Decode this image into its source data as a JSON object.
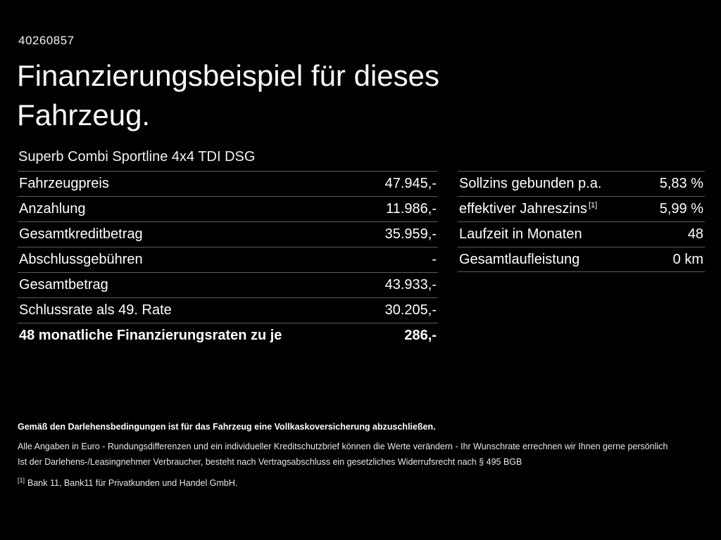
{
  "header": {
    "id": "40260857",
    "title_line1": "Finanzierungsbeispiel für dieses",
    "title_line2": "Fahrzeug.",
    "subtitle": "Superb Combi Sportline 4x4 TDI DSG"
  },
  "left_table": {
    "rows": [
      {
        "label": "Fahrzeugpreis",
        "value": "47.945,-"
      },
      {
        "label": "Anzahlung",
        "value": "11.986,-"
      },
      {
        "label": "Gesamtkreditbetrag",
        "value": "35.959,-"
      },
      {
        "label": "Abschlussgebühren",
        "value": "-"
      },
      {
        "label": "Gesamtbetrag",
        "value": "43.933,-"
      },
      {
        "label": "Schlussrate als 49. Rate",
        "value": "30.205,-"
      },
      {
        "label": "48 monatliche Finanzierungsraten zu je",
        "value": "286,-"
      }
    ]
  },
  "right_table": {
    "rows": [
      {
        "label": "Sollzins gebunden p.a.",
        "value": "5,83 %"
      },
      {
        "label": "effektiver Jahreszins",
        "sup": "[1]",
        "value": "5,99 %"
      },
      {
        "label": "Laufzeit in Monaten",
        "value": "48"
      },
      {
        "label": "Gesamtlaufleistung",
        "value": "0 km"
      }
    ]
  },
  "footer": {
    "line1": "Gemäß den Darlehensbedingungen ist für das Fahrzeug eine Vollkaskoversicherung abzuschließen.",
    "line2": "Alle Angaben in Euro - Rundungsdifferenzen und ein individueller Kreditschutzbrief können die Werte verändern - Ihr Wunschrate errechnen wir Ihnen gerne persönlich",
    "line3": "Ist der Darlehens-/Leasingnehmer Verbraucher, besteht nach Vertragsabschluss ein gesetzliches Widerrufsrecht nach § 495 BGB",
    "footnote_marker": "[1]",
    "footnote": "Bank 11, Bank11 für Privatkunden und Handel GmbH."
  },
  "colors": {
    "background": "#000000",
    "text": "#ffffff",
    "divider": "#5c5c5c"
  }
}
